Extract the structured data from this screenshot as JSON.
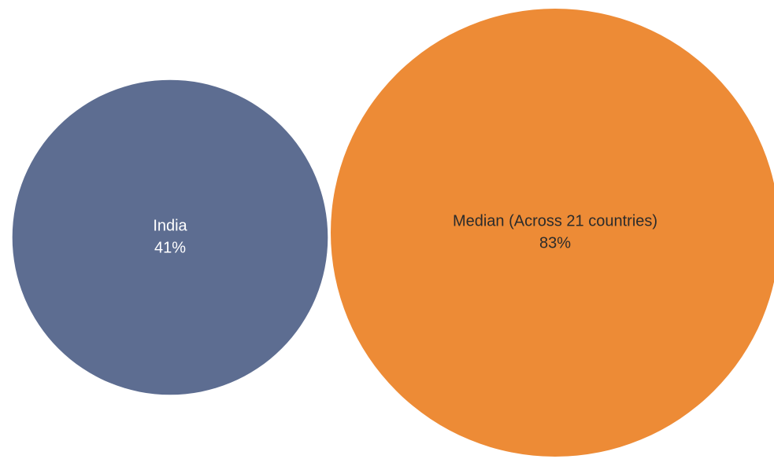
{
  "chart_data": {
    "type": "bubble",
    "title": "",
    "series": [
      {
        "category": "India",
        "value": 41,
        "value_label": "41%",
        "color": "#5d6d91",
        "text_color": "#ffffff"
      },
      {
        "category": "Median (Across 21 countries)",
        "value": 83,
        "value_label": "83%",
        "color": "#ed8b36",
        "text_color": "#2b2b2b"
      }
    ]
  }
}
